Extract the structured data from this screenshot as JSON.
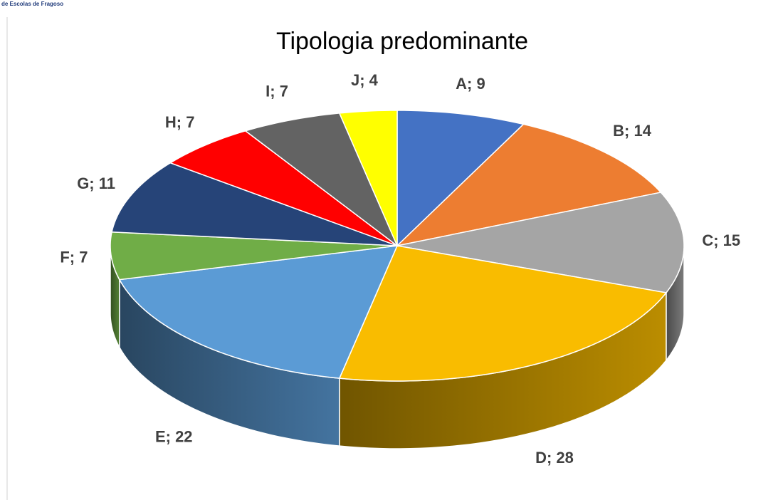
{
  "header_text": "de Escolas de Fragoso",
  "chart_data": {
    "type": "pie3d",
    "title": "Tipologia predominante",
    "categories": [
      "A",
      "B",
      "C",
      "D",
      "E",
      "F",
      "G",
      "H",
      "I",
      "J"
    ],
    "values": [
      9,
      14,
      15,
      28,
      22,
      7,
      11,
      7,
      7,
      4
    ],
    "value_labels": [
      "A; 9",
      "B; 14",
      "C; 15",
      "D; 28",
      "E; 22",
      "F; 7",
      "G; 11",
      "H; 7",
      "I; 7",
      "J; 4"
    ],
    "colors": [
      "#4472c4",
      "#ed7d31",
      "#a5a5a5",
      "#f9bc00",
      "#5b9bd5",
      "#70ad47",
      "#264478",
      "#ff0000",
      "#636363",
      "#ffff00"
    ]
  }
}
